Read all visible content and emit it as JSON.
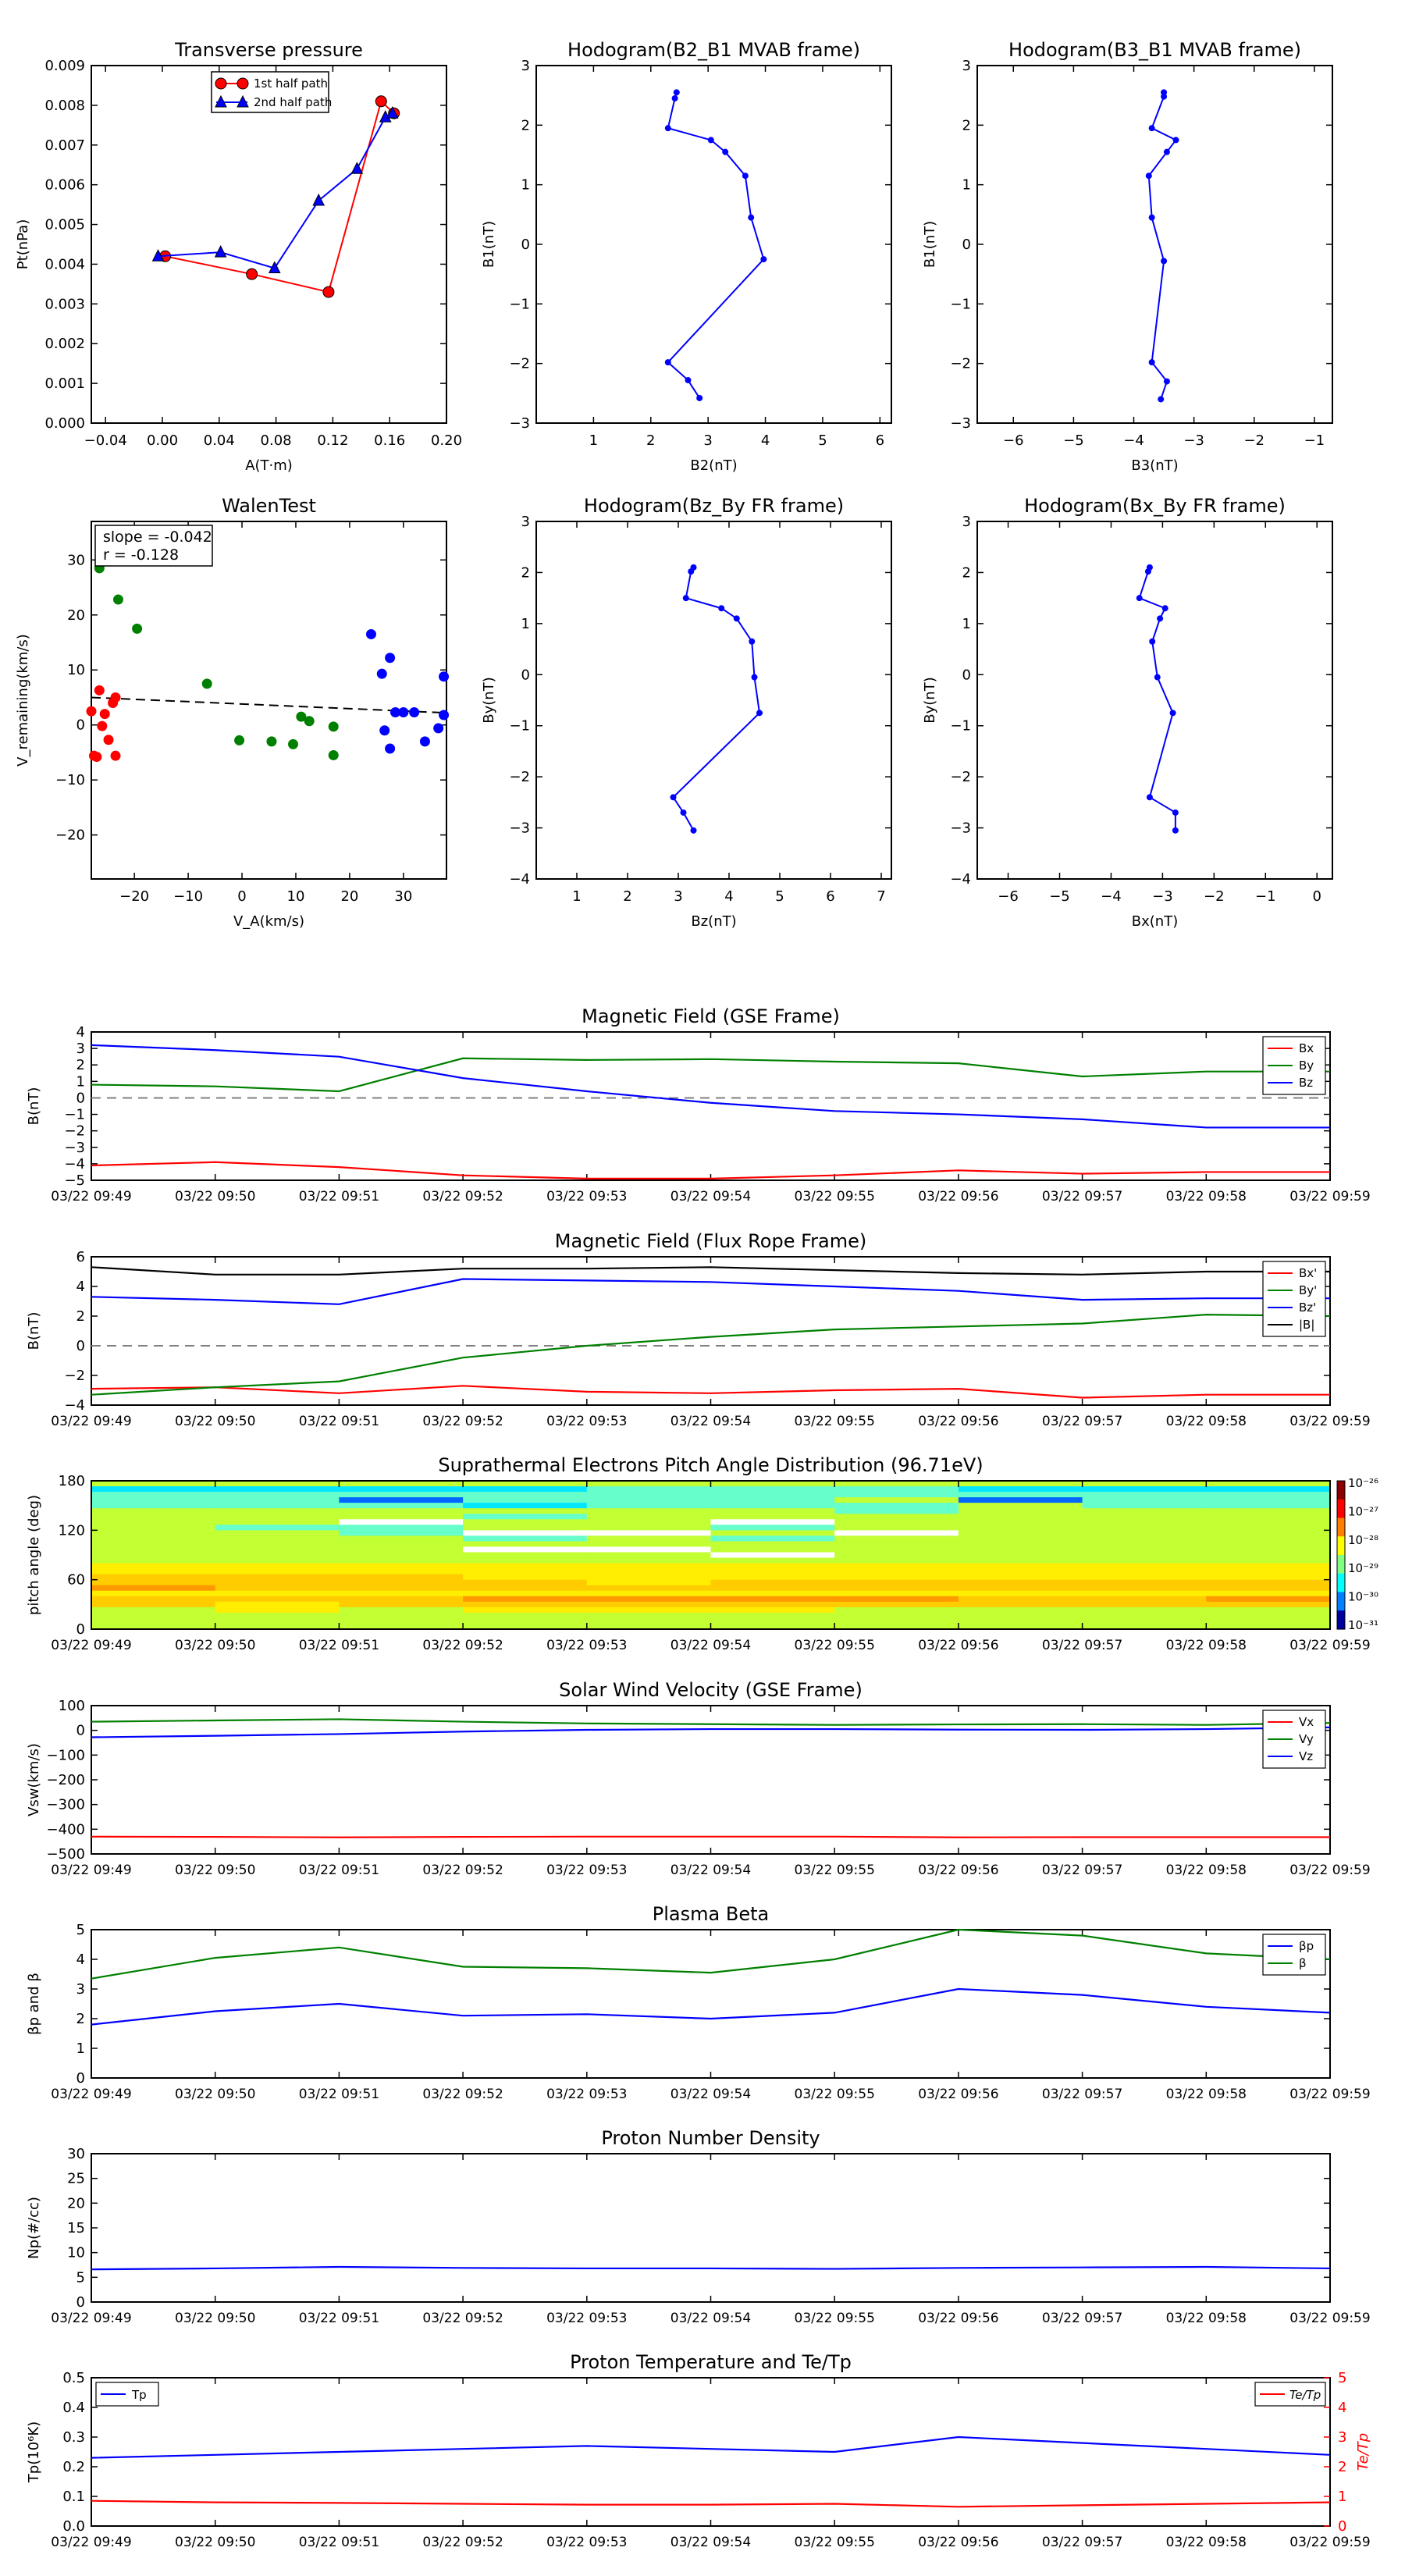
{
  "chart_data": [
    {
      "id": "transverse-pressure",
      "type": "scatter",
      "title": "Transverse pressure",
      "xlabel": "A(T·m)",
      "ylabel": "Pt(nPa)",
      "xlim": [
        -0.05,
        0.2
      ],
      "ylim": [
        0,
        0.009
      ],
      "xticks": [
        -0.04,
        0.0,
        0.04,
        0.08,
        0.12,
        0.16,
        0.2
      ],
      "xtick_labels": [
        "−0.04",
        "0.00",
        "0.04",
        "0.08",
        "0.12",
        "0.16",
        "0.20"
      ],
      "yticks": [
        0,
        0.001,
        0.002,
        0.003,
        0.004,
        0.005,
        0.006,
        0.007,
        0.008,
        0.009
      ],
      "ytick_labels": [
        "0.000",
        "0.001",
        "0.002",
        "0.003",
        "0.004",
        "0.005",
        "0.006",
        "0.007",
        "0.008",
        "0.009"
      ],
      "legend": "top-center",
      "series": [
        {
          "name": "1st half path",
          "color": "#ff0000",
          "marker": "circle",
          "x": [
            0.002,
            0.063,
            0.117,
            0.154,
            0.163
          ],
          "y": [
            0.0042,
            0.00375,
            0.0033,
            0.0081,
            0.0078
          ]
        },
        {
          "name": "2nd half path",
          "color": "#0000ff",
          "marker": "triangle",
          "x": [
            -0.003,
            0.041,
            0.079,
            0.11,
            0.137,
            0.157,
            0.162
          ],
          "y": [
            0.0042,
            0.0043,
            0.0039,
            0.0056,
            0.0064,
            0.0077,
            0.0078
          ]
        }
      ]
    },
    {
      "id": "hodo-b2b1",
      "type": "line",
      "title": "Hodogram(B2_B1 MVAB frame)",
      "xlabel": "B2(nT)",
      "ylabel": "B1(nT)",
      "xlim": [
        0,
        6.2
      ],
      "ylim": [
        -3,
        3
      ],
      "xticks": [
        1,
        2,
        3,
        4,
        5,
        6
      ],
      "xtick_labels": [
        "1",
        "2",
        "3",
        "4",
        "5",
        "6"
      ],
      "yticks": [
        -3,
        -2,
        -1,
        0,
        1,
        2,
        3
      ],
      "ytick_labels": [
        "−3",
        "−2",
        "−1",
        "0",
        "1",
        "2",
        "3"
      ],
      "series": [
        {
          "color": "#0000ff",
          "marker": "dot",
          "x": [
            2.45,
            2.42,
            2.3,
            3.05,
            3.3,
            3.65,
            3.75,
            3.97,
            2.3,
            2.65,
            2.85
          ],
          "y": [
            2.55,
            2.45,
            1.95,
            1.75,
            1.55,
            1.15,
            0.45,
            -0.25,
            -1.98,
            -2.28,
            -2.58
          ]
        }
      ]
    },
    {
      "id": "hodo-b3b1",
      "type": "line",
      "title": "Hodogram(B3_B1 MVAB frame)",
      "xlabel": "B3(nT)",
      "ylabel": "B1(nT)",
      "xlim": [
        -6.6,
        -0.7
      ],
      "ylim": [
        -3,
        3
      ],
      "xticks": [
        -6,
        -5,
        -4,
        -3,
        -2,
        -1
      ],
      "xtick_labels": [
        "−6",
        "−5",
        "−4",
        "−3",
        "−2",
        "−1"
      ],
      "yticks": [
        -3,
        -2,
        -1,
        0,
        1,
        2,
        3
      ],
      "ytick_labels": [
        "−3",
        "−2",
        "−1",
        "0",
        "1",
        "2",
        "3"
      ],
      "series": [
        {
          "color": "#0000ff",
          "marker": "dot",
          "x": [
            -3.5,
            -3.5,
            -3.7,
            -3.3,
            -3.45,
            -3.75,
            -3.7,
            -3.5,
            -3.7,
            -3.45,
            -3.55
          ],
          "y": [
            2.55,
            2.48,
            1.95,
            1.75,
            1.55,
            1.15,
            0.45,
            -0.28,
            -1.98,
            -2.3,
            -2.6
          ]
        }
      ]
    },
    {
      "id": "walen",
      "type": "scatter",
      "title": "WalenTest",
      "xlabel": "V_A(km/s)",
      "ylabel": "V_remaining(km/s)",
      "xlim": [
        -28,
        38
      ],
      "ylim": [
        -28,
        37
      ],
      "xticks": [
        -20,
        -10,
        0,
        10,
        20,
        30
      ],
      "xtick_labels": [
        "−20",
        "−10",
        "0",
        "10",
        "20",
        "30"
      ],
      "yticks": [
        -20,
        -10,
        0,
        10,
        20,
        30
      ],
      "ytick_labels": [
        "−20",
        "−10",
        "0",
        "10",
        "20",
        "30"
      ],
      "annotation": [
        "slope = -0.042",
        "r = -0.128"
      ],
      "fit_line": {
        "x": [
          -28,
          38
        ],
        "y": [
          5.0,
          2.2
        ]
      },
      "series": [
        {
          "color": "#ff0000",
          "x": [
            -28,
            -26.5,
            -26,
            -25.5,
            -24.8,
            -24,
            -23.5,
            -23.5,
            -27.5,
            -27
          ],
          "y": [
            2.5,
            6.3,
            -0.2,
            2.0,
            -2.7,
            4.0,
            5.0,
            -5.6,
            -5.6,
            -5.8
          ]
        },
        {
          "color": "#008000",
          "x": [
            -26.5,
            -23,
            -19.5,
            -6.5,
            -0.5,
            5.5,
            9.5,
            11,
            12.5,
            17,
            17
          ],
          "y": [
            28.5,
            22.8,
            17.5,
            7.5,
            -2.8,
            -3.0,
            -3.5,
            1.5,
            0.7,
            -0.3,
            -5.5
          ]
        },
        {
          "color": "#0000ff",
          "x": [
            24,
            26,
            26.5,
            27.5,
            27.5,
            28.5,
            30,
            32,
            34,
            36.5,
            37.5,
            37.5
          ],
          "y": [
            16.5,
            9.3,
            -1.0,
            -4.3,
            12.2,
            2.3,
            2.3,
            2.3,
            -3.0,
            -0.6,
            1.8,
            8.8
          ]
        }
      ]
    },
    {
      "id": "hodo-bzby",
      "type": "line",
      "title": "Hodogram(Bz_By FR frame)",
      "xlabel": "Bz(nT)",
      "ylabel": "By(nT)",
      "xlim": [
        0.2,
        7.2
      ],
      "ylim": [
        -4,
        3
      ],
      "xticks": [
        1,
        2,
        3,
        4,
        5,
        6,
        7
      ],
      "xtick_labels": [
        "1",
        "2",
        "3",
        "4",
        "5",
        "6",
        "7"
      ],
      "yticks": [
        -4,
        -3,
        -2,
        -1,
        0,
        1,
        2,
        3
      ],
      "ytick_labels": [
        "−4",
        "−3",
        "−2",
        "−1",
        "0",
        "1",
        "2",
        "3"
      ],
      "series": [
        {
          "color": "#0000ff",
          "marker": "dot",
          "x": [
            3.3,
            3.25,
            3.15,
            3.85,
            4.15,
            4.45,
            4.5,
            4.6,
            2.9,
            3.1,
            3.3
          ],
          "y": [
            2.1,
            2.02,
            1.5,
            1.3,
            1.1,
            0.65,
            -0.05,
            -0.75,
            -2.4,
            -2.7,
            -3.05
          ]
        }
      ]
    },
    {
      "id": "hodo-bxby",
      "type": "line",
      "title": "Hodogram(Bx_By FR frame)",
      "xlabel": "Bx(nT)",
      "ylabel": "By(nT)",
      "xlim": [
        -6.6,
        0.3
      ],
      "ylim": [
        -4,
        3
      ],
      "xticks": [
        -6,
        -5,
        -4,
        -3,
        -2,
        -1,
        0
      ],
      "xtick_labels": [
        "−6",
        "−5",
        "−4",
        "−3",
        "−2",
        "−1",
        "0"
      ],
      "yticks": [
        -4,
        -3,
        -2,
        -1,
        0,
        1,
        2,
        3
      ],
      "ytick_labels": [
        "−4",
        "−3",
        "−2",
        "−1",
        "0",
        "1",
        "2",
        "3"
      ],
      "series": [
        {
          "color": "#0000ff",
          "marker": "dot",
          "x": [
            -3.25,
            -3.28,
            -3.45,
            -2.95,
            -3.05,
            -3.2,
            -3.1,
            -2.8,
            -3.25,
            -2.75,
            -2.75
          ],
          "y": [
            2.1,
            2.02,
            1.5,
            1.3,
            1.1,
            0.65,
            -0.05,
            -0.75,
            -2.4,
            -2.7,
            -3.05
          ]
        }
      ]
    }
  ],
  "time_series": {
    "xtick_labels": [
      "03/22 09:49",
      "03/22 09:50",
      "03/22 09:51",
      "03/22 09:52",
      "03/22 09:53",
      "03/22 09:54",
      "03/22 09:55",
      "03/22 09:56",
      "03/22 09:57",
      "03/22 09:58",
      "03/22 09:59"
    ],
    "panels": [
      {
        "id": "mag-gse",
        "type": "line",
        "title": "Magnetic Field (GSE Frame)",
        "ylabel": "B(nT)",
        "ylim": [
          -5,
          4
        ],
        "yticks": [
          -5,
          -4,
          -3,
          -2,
          -1,
          0,
          1,
          2,
          3,
          4
        ],
        "ytick_labels": [
          "−5",
          "−4",
          "−3",
          "−2",
          "−1",
          "0",
          "1",
          "2",
          "3",
          "4"
        ],
        "zero_line": true,
        "legend": "right",
        "series": [
          {
            "name": "Bx",
            "color": "#ff0000",
            "values": [
              -4.1,
              -3.9,
              -4.2,
              -4.7,
              -4.9,
              -4.9,
              -4.7,
              -4.4,
              -4.6,
              -4.5,
              -4.5
            ]
          },
          {
            "name": "By",
            "color": "#008000",
            "values": [
              0.8,
              0.7,
              0.4,
              2.4,
              2.3,
              2.35,
              2.2,
              2.1,
              1.3,
              1.6,
              1.6
            ]
          },
          {
            "name": "Bz",
            "color": "#0000ff",
            "values": [
              3.2,
              2.9,
              2.5,
              1.2,
              0.4,
              -0.3,
              -0.8,
              -1.0,
              -1.3,
              -1.8,
              -1.8
            ]
          }
        ]
      },
      {
        "id": "mag-fr",
        "type": "line",
        "title": "Magnetic Field (Flux Rope Frame)",
        "ylabel": "B(nT)",
        "ylim": [
          -4,
          6
        ],
        "yticks": [
          -4,
          -2,
          0,
          2,
          4,
          6
        ],
        "ytick_labels": [
          "−4",
          "−2",
          "0",
          "2",
          "4",
          "6"
        ],
        "zero_line": true,
        "legend": "right",
        "series": [
          {
            "name": "Bx'",
            "color": "#ff0000",
            "values": [
              -2.9,
              -2.8,
              -3.2,
              -2.7,
              -3.1,
              -3.2,
              -3.0,
              -2.9,
              -3.5,
              -3.3,
              -3.3
            ]
          },
          {
            "name": "By'",
            "color": "#008000",
            "values": [
              -3.3,
              -2.8,
              -2.4,
              -0.8,
              0.0,
              0.6,
              1.1,
              1.3,
              1.5,
              2.1,
              2.0
            ]
          },
          {
            "name": "Bz'",
            "color": "#0000ff",
            "values": [
              3.3,
              3.1,
              2.8,
              4.5,
              4.4,
              4.3,
              4.0,
              3.7,
              3.1,
              3.2,
              3.2
            ]
          },
          {
            "name": "|B|",
            "color": "#000000",
            "values": [
              5.3,
              4.8,
              4.8,
              5.2,
              5.2,
              5.3,
              5.1,
              4.9,
              4.8,
              5.0,
              5.0
            ]
          }
        ]
      },
      {
        "id": "pad",
        "type": "heatmap",
        "title": "Suprathermal Electrons Pitch Angle Distribution (96.71eV)",
        "ylabel": "pitch angle (deg)",
        "ylim": [
          0,
          180
        ],
        "yticks": [
          0,
          60,
          120,
          180
        ],
        "ytick_labels": [
          "0",
          "60",
          "120",
          "180"
        ],
        "colorbar_labels": [
          "10⁻²⁶",
          "10⁻²⁷",
          "10⁻²⁸",
          "10⁻²⁹",
          "10⁻³⁰",
          "10⁻³¹"
        ],
        "colorbar_colors": [
          "#8b0000",
          "#ff0000",
          "#ff8000",
          "#ffff00",
          "#80ff80",
          "#00ffff",
          "#0080ff",
          "#0000a0"
        ],
        "rows_top_to_bottom": [
          "1111111111",
          "3333222333",
          "2222222222",
          "2242221422",
          "2223222122",
          "1111112111",
          "1112111111",
          "1151151111",
          "1221121111",
          "1125515111",
          "1112121111",
          "1111111111",
          "1115511111",
          "1111151111",
          "1111111111",
          "6666666666",
          "6666666666",
          "7776666666",
          "7777677777",
          "8777777777",
          "6666666666",
          "7778888778",
          "7677777777",
          "1616661111",
          "1111111111",
          "1111111111",
          "1111111111"
        ],
        "palette": {
          "1": "#c2ff33",
          "2": "#66ffcc",
          "3": "#00e6ff",
          "4": "#0066ff",
          "5": "#ffffff",
          "6": "#ffee00",
          "7": "#ffcc00",
          "8": "#ff9900"
        }
      },
      {
        "id": "vsw",
        "type": "line",
        "title": "Solar Wind Velocity (GSE Frame)",
        "ylabel": "Vsw(km/s)",
        "ylim": [
          -500,
          100
        ],
        "yticks": [
          -500,
          -400,
          -300,
          -200,
          -100,
          0,
          100
        ],
        "ytick_labels": [
          "−500",
          "−400",
          "−300",
          "−200",
          "−100",
          "0",
          "100"
        ],
        "legend": "right",
        "series": [
          {
            "name": "Vx",
            "color": "#ff0000",
            "values": [
              -430,
              -431,
              -433,
              -431,
              -430,
              -430,
              -430,
              -433,
              -432,
              -432,
              -432
            ]
          },
          {
            "name": "Vy",
            "color": "#008000",
            "values": [
              35,
              40,
              45,
              35,
              28,
              25,
              22,
              24,
              25,
              22,
              30
            ]
          },
          {
            "name": "Vz",
            "color": "#0000ff",
            "values": [
              -28,
              -22,
              -15,
              -5,
              2,
              5,
              5,
              3,
              2,
              5,
              12
            ]
          }
        ]
      },
      {
        "id": "beta",
        "type": "line",
        "title": "Plasma Beta",
        "ylabel": "βp and β",
        "ylim": [
          0,
          5
        ],
        "yticks": [
          0,
          1,
          2,
          3,
          4,
          5
        ],
        "ytick_labels": [
          "0",
          "1",
          "2",
          "3",
          "4",
          "5"
        ],
        "legend": "right",
        "series": [
          {
            "name": "βp",
            "color": "#0000ff",
            "values": [
              1.8,
              2.25,
              2.5,
              2.1,
              2.15,
              2.0,
              2.2,
              3.0,
              2.8,
              2.4,
              2.2
            ]
          },
          {
            "name": "β",
            "color": "#008000",
            "values": [
              3.35,
              4.05,
              4.4,
              3.75,
              3.7,
              3.55,
              4.0,
              5.0,
              4.8,
              4.2,
              4.0
            ]
          }
        ]
      },
      {
        "id": "np",
        "type": "line",
        "title": "Proton Number Density",
        "ylabel": "Np(#/cc)",
        "ylim": [
          0,
          30
        ],
        "yticks": [
          0,
          5,
          10,
          15,
          20,
          25,
          30
        ],
        "ytick_labels": [
          "0",
          "5",
          "10",
          "15",
          "20",
          "25",
          "30"
        ],
        "series": [
          {
            "color": "#0000ff",
            "values": [
              6.6,
              6.8,
              7.1,
              6.9,
              6.8,
              6.8,
              6.7,
              6.9,
              7.0,
              7.1,
              6.8
            ]
          }
        ]
      },
      {
        "id": "tp",
        "type": "line",
        "title": "Proton Temperature and Te/Tp",
        "ylabel": "Tp(10⁶K)",
        "ylabel_right": "Te/Tp",
        "ylim": [
          0,
          0.5
        ],
        "yticks": [
          0,
          0.1,
          0.2,
          0.3,
          0.4,
          0.5
        ],
        "ytick_labels": [
          "0.0",
          "0.1",
          "0.2",
          "0.3",
          "0.4",
          "0.5"
        ],
        "ylim_right": [
          0,
          5
        ],
        "yticks_right": [
          0,
          1,
          2,
          3,
          4,
          5
        ],
        "ytick_labels_right": [
          "0",
          "1",
          "2",
          "3",
          "4",
          "5"
        ],
        "legend_left": "top-left",
        "legend_right": "top-right",
        "series": [
          {
            "name": "Tp",
            "color": "#0000ff",
            "axis": "left",
            "values": [
              0.23,
              0.24,
              0.25,
              0.26,
              0.27,
              0.26,
              0.25,
              0.3,
              0.28,
              0.26,
              0.24
            ]
          },
          {
            "name": "Te/Tp",
            "color": "#ff0000",
            "axis": "right",
            "values": [
              0.85,
              0.8,
              0.78,
              0.75,
              0.72,
              0.72,
              0.75,
              0.65,
              0.7,
              0.75,
              0.8
            ]
          }
        ]
      }
    ]
  }
}
